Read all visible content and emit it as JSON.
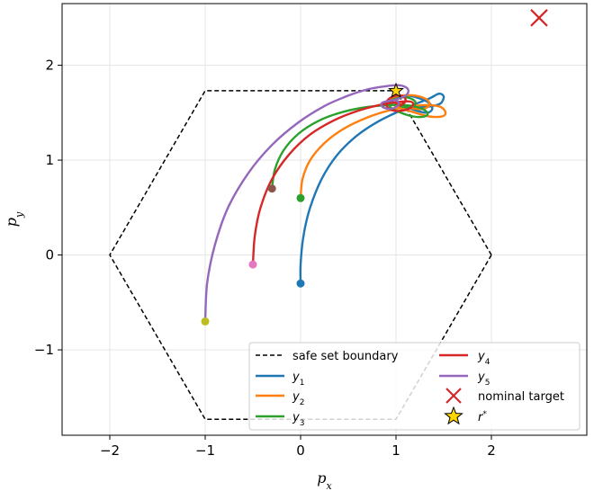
{
  "chart_data": {
    "type": "line",
    "xlabel": "p",
    "xlabel_sub": "x",
    "ylabel": "p",
    "ylabel_sub": "y",
    "xlim": [
      -2.5,
      3.0
    ],
    "ylim": [
      -1.9,
      2.65
    ],
    "xticks": [
      -2,
      -1,
      0,
      1,
      2
    ],
    "yticks": [
      -1,
      0,
      1,
      2
    ],
    "grid": true,
    "legend_position": "lower-right",
    "safe_set": {
      "name": "safe set boundary",
      "color": "#000000",
      "style": "dashed",
      "x": [
        2,
        1,
        -1,
        -2,
        -1,
        1,
        2
      ],
      "y": [
        0,
        1.732,
        1.732,
        0,
        -1.732,
        -1.732,
        0
      ]
    },
    "nominal_target": {
      "name": "nominal target",
      "x": 2.5,
      "y": 2.5,
      "color": "#d62728"
    },
    "r_star": {
      "name": "r*",
      "x": 1.0,
      "y": 1.73,
      "color": "#ffd700"
    },
    "series": [
      {
        "name": "y",
        "sub": "1",
        "color": "#1f77b4",
        "start_color": "#1f77b4",
        "x": [
          0.0,
          0.0,
          0.03,
          0.1,
          0.22,
          0.38,
          0.58,
          0.8,
          1.02,
          1.2,
          1.35,
          1.45,
          1.5,
          1.47,
          1.38,
          1.25,
          1.12,
          1.0,
          0.95,
          1.0,
          1.12,
          1.25,
          1.35,
          1.38,
          1.33,
          1.22,
          1.1,
          1.02
        ],
        "y": [
          -0.3,
          -0.1,
          0.2,
          0.5,
          0.8,
          1.05,
          1.25,
          1.4,
          1.51,
          1.59,
          1.65,
          1.7,
          1.67,
          1.6,
          1.57,
          1.56,
          1.57,
          1.6,
          1.64,
          1.67,
          1.68,
          1.65,
          1.6,
          1.54,
          1.5,
          1.52,
          1.57,
          1.62
        ]
      },
      {
        "name": "y",
        "sub": "2",
        "color": "#ff7f0e",
        "start_color": "#2ca02c",
        "x": [
          0.0,
          0.02,
          0.1,
          0.25,
          0.45,
          0.7,
          0.95,
          1.18,
          1.35,
          1.47,
          1.52,
          1.48,
          1.35,
          1.2,
          1.05,
          0.95,
          0.95,
          1.05,
          1.2,
          1.32,
          1.35,
          1.28,
          1.15,
          1.05
        ],
        "y": [
          0.6,
          0.8,
          1.0,
          1.18,
          1.33,
          1.45,
          1.53,
          1.57,
          1.58,
          1.56,
          1.5,
          1.46,
          1.46,
          1.5,
          1.55,
          1.6,
          1.65,
          1.68,
          1.68,
          1.64,
          1.58,
          1.54,
          1.55,
          1.6
        ]
      },
      {
        "name": "y",
        "sub": "3",
        "color": "#2ca02c",
        "start_color": "#8c564b",
        "x": [
          -0.3,
          -0.27,
          -0.18,
          -0.02,
          0.2,
          0.45,
          0.7,
          0.92,
          1.1,
          1.25,
          1.33,
          1.3,
          1.18,
          1.05,
          0.95,
          0.93,
          1.0,
          1.12,
          1.2,
          1.18,
          1.08,
          1.0
        ],
        "y": [
          0.7,
          0.9,
          1.1,
          1.28,
          1.42,
          1.51,
          1.56,
          1.58,
          1.58,
          1.55,
          1.5,
          1.46,
          1.46,
          1.5,
          1.55,
          1.61,
          1.65,
          1.66,
          1.62,
          1.57,
          1.56,
          1.6
        ]
      },
      {
        "name": "y",
        "sub": "4",
        "color": "#d62728",
        "start_color": "#e377c2",
        "x": [
          -0.5,
          -0.48,
          -0.42,
          -0.3,
          -0.12,
          0.1,
          0.35,
          0.6,
          0.82,
          1.0,
          1.12,
          1.18,
          1.15,
          1.05,
          0.95,
          0.9,
          0.92,
          1.0,
          1.08,
          1.1,
          1.05,
          1.0
        ],
        "y": [
          -0.1,
          0.2,
          0.5,
          0.8,
          1.06,
          1.27,
          1.42,
          1.52,
          1.58,
          1.61,
          1.62,
          1.6,
          1.55,
          1.52,
          1.53,
          1.58,
          1.64,
          1.68,
          1.67,
          1.62,
          1.58,
          1.6
        ]
      },
      {
        "name": "y",
        "sub": "5",
        "color": "#9467bd",
        "start_color": "#bcbd22",
        "x": [
          -1.0,
          -0.98,
          -0.9,
          -0.76,
          -0.55,
          -0.3,
          -0.02,
          0.25,
          0.5,
          0.72,
          0.9,
          1.02,
          1.1,
          1.13,
          1.1,
          1.0,
          0.9,
          0.85,
          0.86,
          0.93,
          1.0,
          1.03,
          1.0
        ],
        "y": [
          -0.7,
          -0.3,
          0.1,
          0.5,
          0.86,
          1.16,
          1.4,
          1.57,
          1.68,
          1.75,
          1.78,
          1.79,
          1.77,
          1.73,
          1.68,
          1.64,
          1.62,
          1.6,
          1.56,
          1.54,
          1.56,
          1.6,
          1.63
        ]
      }
    ],
    "legend": {
      "col1": [
        {
          "key": "safe",
          "label": "safe set boundary"
        },
        {
          "key": "y1",
          "label": "y",
          "sub": "1"
        },
        {
          "key": "y2",
          "label": "y",
          "sub": "2"
        },
        {
          "key": "y3",
          "label": "y",
          "sub": "3"
        }
      ],
      "col2": [
        {
          "key": "y4",
          "label": "y",
          "sub": "4"
        },
        {
          "key": "y5",
          "label": "y",
          "sub": "5"
        },
        {
          "key": "nominal",
          "label": "nominal target"
        },
        {
          "key": "rstar",
          "label": "r",
          "sup": "*"
        }
      ]
    }
  }
}
